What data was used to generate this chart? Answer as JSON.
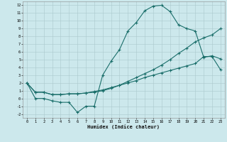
{
  "xlabel": "Humidex (Indice chaleur)",
  "xlim": [
    -0.5,
    23.5
  ],
  "ylim": [
    -2.5,
    12.5
  ],
  "xticks": [
    0,
    1,
    2,
    3,
    4,
    5,
    6,
    7,
    8,
    9,
    10,
    11,
    12,
    13,
    14,
    15,
    16,
    17,
    18,
    19,
    20,
    21,
    22,
    23
  ],
  "yticks": [
    -2,
    -1,
    0,
    1,
    2,
    3,
    4,
    5,
    6,
    7,
    8,
    9,
    10,
    11,
    12
  ],
  "bg_color": "#cce8ec",
  "grid_color": "#aac8cc",
  "line_color": "#1a6e6a",
  "line1_x": [
    0,
    1,
    2,
    3,
    4,
    5,
    6,
    7,
    8,
    9,
    10,
    11,
    12,
    13,
    14,
    15,
    16,
    17,
    18,
    19,
    20,
    21,
    22,
    23
  ],
  "line1_y": [
    2,
    0,
    0,
    -0.3,
    -0.5,
    -0.5,
    -1.8,
    -1.0,
    -1.0,
    3.0,
    4.8,
    6.3,
    8.7,
    9.8,
    11.3,
    11.9,
    12.0,
    11.2,
    9.5,
    9.0,
    8.7,
    5.3,
    5.5,
    5.1
  ],
  "line2_x": [
    0,
    1,
    2,
    3,
    4,
    5,
    6,
    7,
    8,
    9,
    10,
    11,
    12,
    13,
    14,
    15,
    16,
    17,
    18,
    19,
    20,
    21,
    22,
    23
  ],
  "line2_y": [
    2.0,
    0.8,
    0.8,
    0.5,
    0.5,
    0.6,
    0.6,
    0.7,
    0.8,
    1.0,
    1.3,
    1.7,
    2.2,
    2.7,
    3.2,
    3.7,
    4.3,
    5.0,
    5.8,
    6.5,
    7.3,
    7.8,
    8.2,
    9.0
  ],
  "line3_x": [
    0,
    1,
    2,
    3,
    4,
    5,
    6,
    7,
    8,
    9,
    10,
    11,
    12,
    13,
    14,
    15,
    16,
    17,
    18,
    19,
    20,
    21,
    22,
    23
  ],
  "line3_y": [
    2.0,
    0.8,
    0.8,
    0.5,
    0.5,
    0.6,
    0.6,
    0.7,
    0.9,
    1.1,
    1.4,
    1.7,
    2.0,
    2.3,
    2.7,
    3.0,
    3.3,
    3.6,
    3.9,
    4.2,
    4.5,
    5.4,
    5.4,
    3.7
  ]
}
